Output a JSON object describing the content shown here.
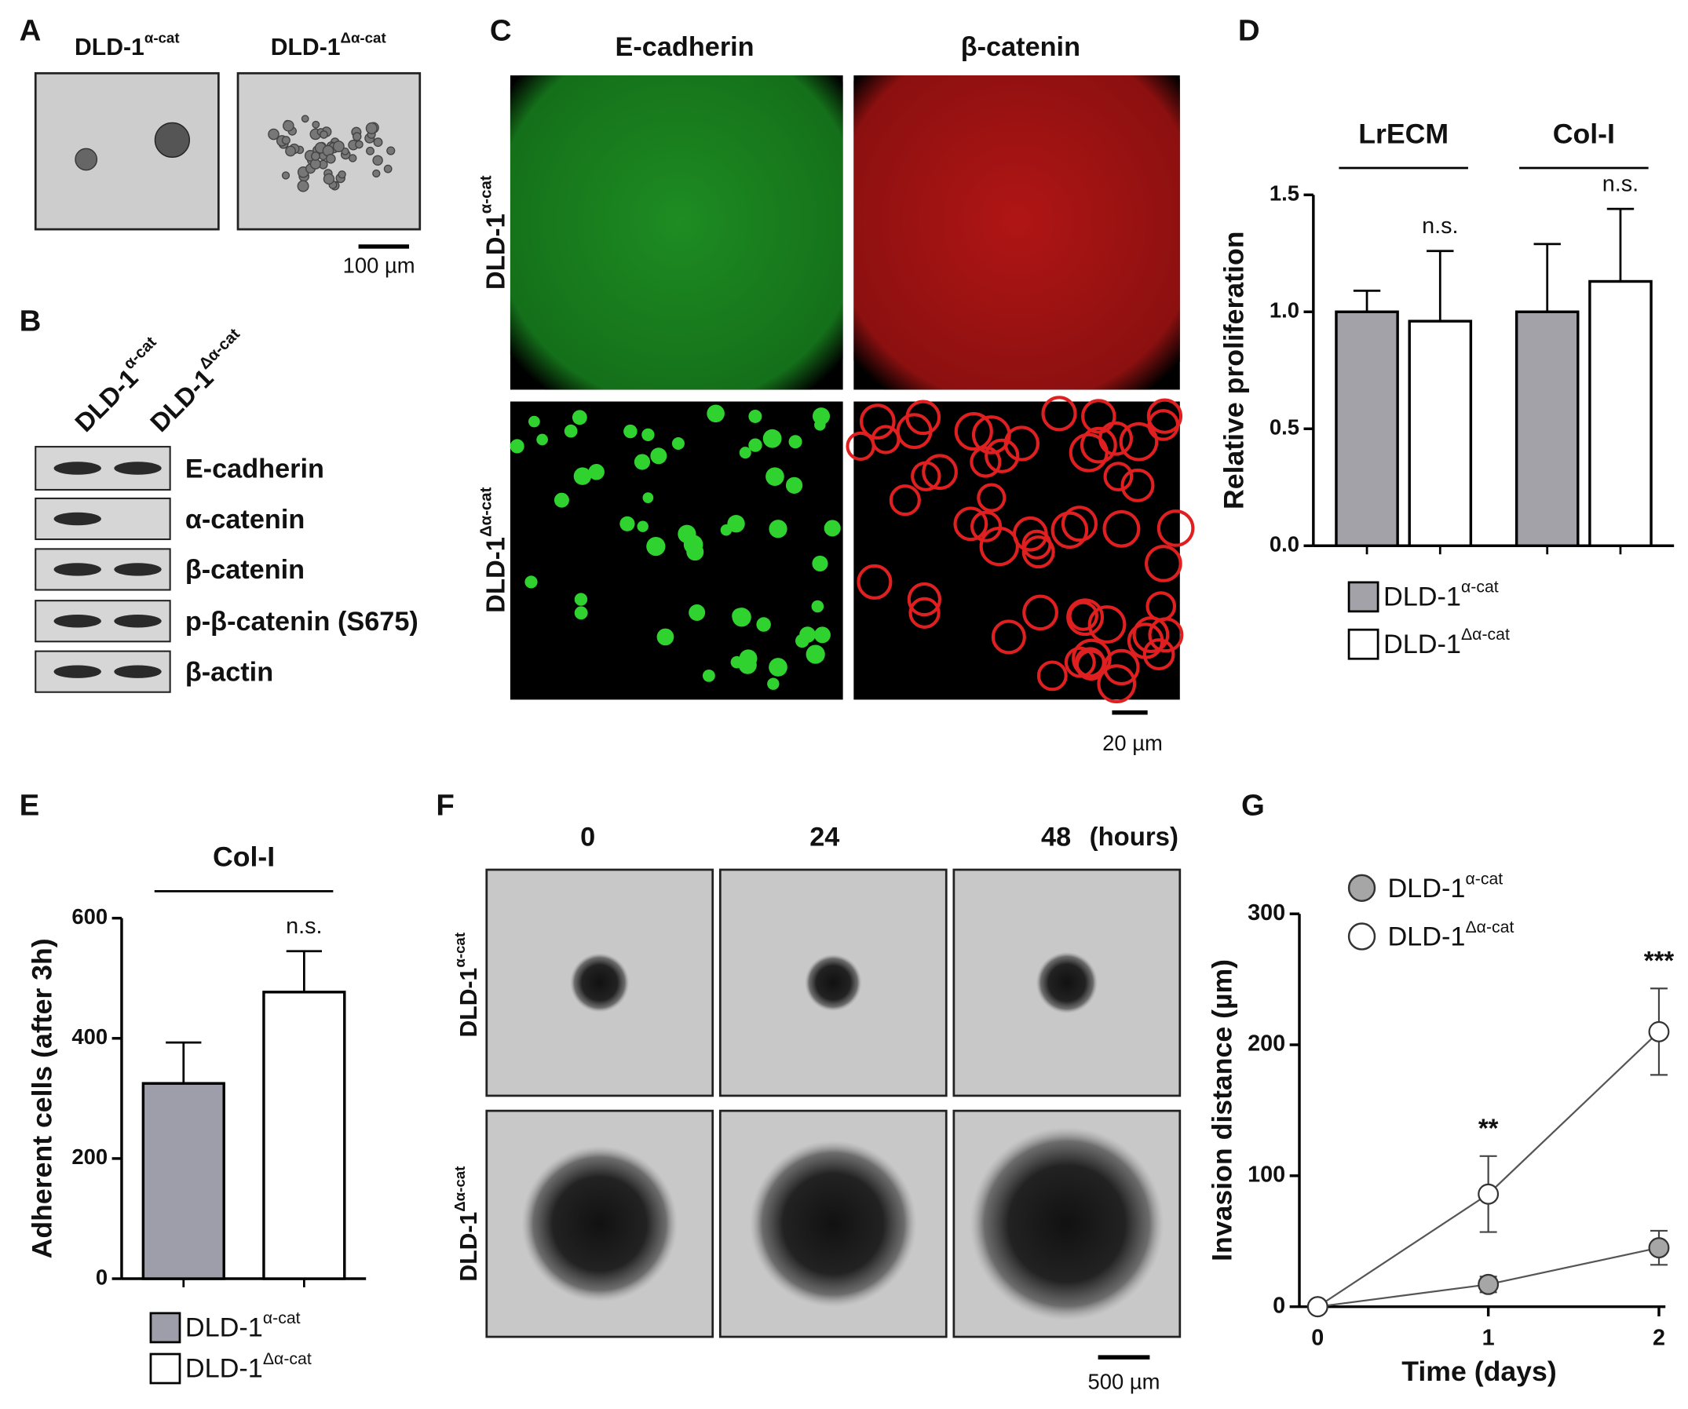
{
  "panel_labels": [
    "A",
    "B",
    "C",
    "D",
    "E",
    "F",
    "G"
  ],
  "panel_a": {
    "columns": [
      [
        "DLD-1",
        "α-cat"
      ],
      [
        "DLD-1",
        "Δα-cat"
      ]
    ],
    "scale_bar": "100 µm"
  },
  "panel_b": {
    "lanes": [
      [
        "DLD-1",
        "α-cat"
      ],
      [
        "DLD-1",
        "Δα-cat"
      ]
    ],
    "bands": [
      "E-cadherin",
      "α-catenin",
      "β-catenin",
      "p-β-catenin (S675)",
      "β-actin"
    ]
  },
  "panel_c": {
    "columns": [
      "E-cadherin",
      "β-catenin"
    ],
    "rows": [
      [
        "DLD-1",
        "α-cat"
      ],
      [
        "DLD-1",
        "Δα-cat"
      ]
    ],
    "scale_bar": "20 µm"
  },
  "panel_f": {
    "columns": [
      "0",
      "24",
      "48"
    ],
    "unit": "(hours)",
    "rows": [
      [
        "DLD-1",
        "α-cat"
      ],
      [
        "DLD-1",
        "Δα-cat"
      ]
    ],
    "scale_bar": "500 µm"
  },
  "chart_data": [
    {
      "type": "bar",
      "categories": [
        "LrECM",
        "Col-I"
      ],
      "ylabel": "Relative proliferation",
      "ylim": [
        0,
        1.5
      ],
      "yticks": [
        {
          "value": 0,
          "label": "0.0"
        },
        0.5,
        {
          "value": 1,
          "label": "1.0"
        },
        1.5
      ],
      "series": [
        {
          "name": [
            "DLD-1",
            "α-cat"
          ],
          "color": "#a2a2a8",
          "values": [
            1.0,
            1.0
          ],
          "errors": [
            0.09,
            0.29
          ]
        },
        {
          "name": [
            "DLD-1",
            "Δα-cat"
          ],
          "color": "#ffffff",
          "values": [
            0.96,
            1.13
          ],
          "errors": [
            0.3,
            0.31
          ],
          "annotations": [
            "n.s.",
            "n.s."
          ]
        }
      ]
    },
    {
      "type": "bar",
      "categories": [
        "Col-I"
      ],
      "ylabel": "Adherent cells (after 3h)",
      "ylim": [
        0,
        600
      ],
      "yticks": [
        0,
        200,
        400,
        600
      ],
      "series": [
        {
          "name": [
            "DLD-1",
            "α-cat"
          ],
          "color": "#9e9eaa",
          "values": [
            325
          ],
          "errors": [
            68
          ]
        },
        {
          "name": [
            "DLD-1",
            "Δα-cat"
          ],
          "color": "#ffffff",
          "values": [
            477
          ],
          "errors": [
            68
          ],
          "annotations": [
            "n.s."
          ]
        }
      ]
    },
    {
      "type": "line",
      "x": [
        0,
        1,
        2
      ],
      "xlabel": "Time (days)",
      "ylabel": "Invasion distance  (µm)",
      "xlim": [
        0,
        2
      ],
      "xticks": [
        0,
        1,
        2
      ],
      "ylim": [
        0,
        300
      ],
      "yticks": [
        0,
        100,
        200,
        300
      ],
      "series": [
        {
          "name": [
            "DLD-1",
            "α-cat"
          ],
          "color": "#a6a6a6",
          "values": [
            0,
            17,
            45
          ],
          "errors": [
            0,
            6,
            13
          ]
        },
        {
          "name": [
            "DLD-1",
            "Δα-cat"
          ],
          "color": "#ffffff",
          "values": [
            0,
            86,
            210
          ],
          "errors": [
            0,
            29,
            33
          ],
          "annotations": [
            null,
            "**",
            "***"
          ]
        }
      ]
    }
  ]
}
